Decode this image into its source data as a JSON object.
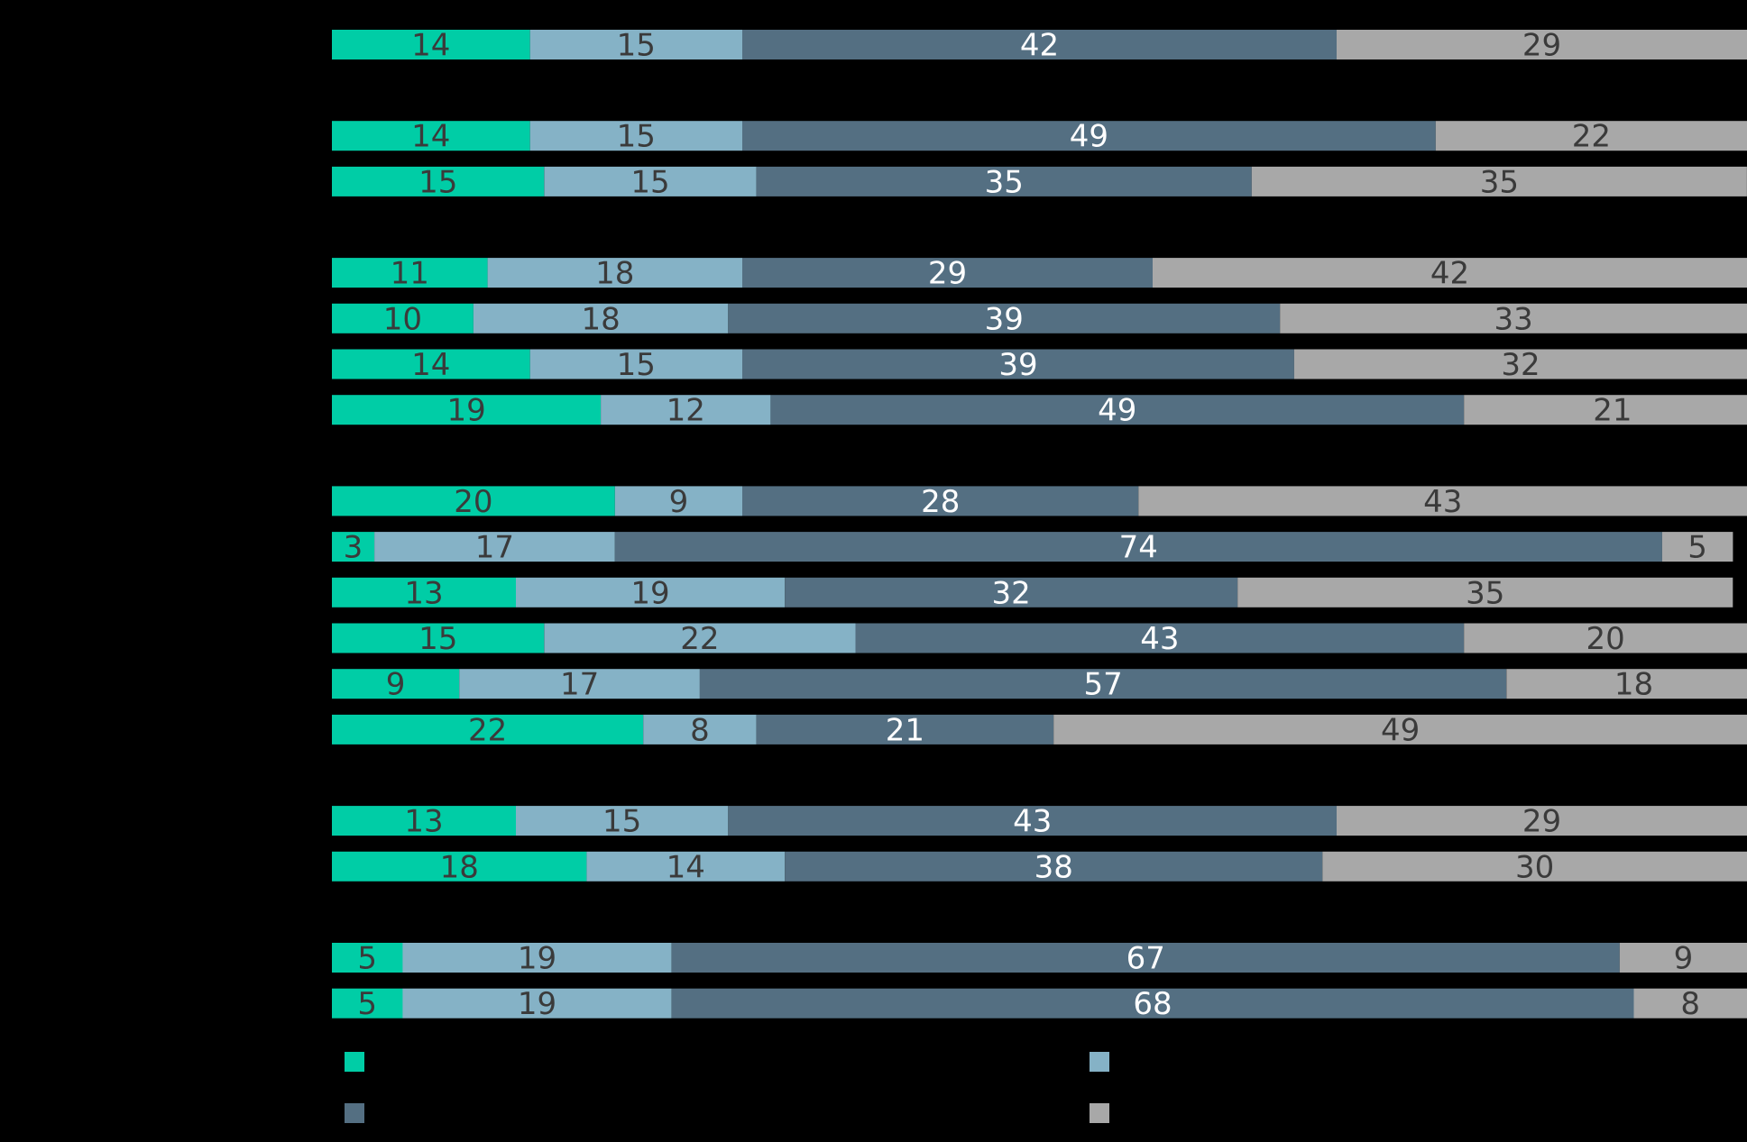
{
  "colors": {
    "background": "#000000",
    "series": [
      "#00cda6",
      "#85b2c6",
      "#546f82",
      "#a8a8a8"
    ],
    "label_on_light": "#3a3a3a",
    "label_on_dark": "#ffffff"
  },
  "chart_data": {
    "type": "bar",
    "orientation": "horizontal",
    "stacked": true,
    "normalized_percent": true,
    "grid": false,
    "legend": "bottom",
    "legend_labels_visible": false,
    "series": [
      {
        "values": [
          14,
          14,
          15,
          11,
          10,
          14,
          19,
          20,
          3,
          13,
          15,
          9,
          22,
          13,
          18,
          5,
          5
        ]
      },
      {
        "values": [
          15,
          15,
          15,
          18,
          18,
          15,
          12,
          9,
          17,
          19,
          22,
          17,
          8,
          15,
          14,
          19,
          19
        ]
      },
      {
        "values": [
          42,
          49,
          35,
          29,
          39,
          39,
          49,
          28,
          74,
          32,
          43,
          57,
          21,
          43,
          38,
          67,
          68
        ]
      },
      {
        "values": [
          29,
          22,
          35,
          42,
          33,
          32,
          21,
          43,
          5,
          35,
          20,
          18,
          49,
          29,
          30,
          9,
          8
        ]
      }
    ],
    "groups": [
      [
        0
      ],
      [
        1,
        2
      ],
      [
        3,
        4,
        5,
        6
      ],
      [
        7,
        8,
        9,
        10,
        11,
        12
      ],
      [
        13,
        14
      ],
      [
        15,
        16
      ]
    ]
  }
}
